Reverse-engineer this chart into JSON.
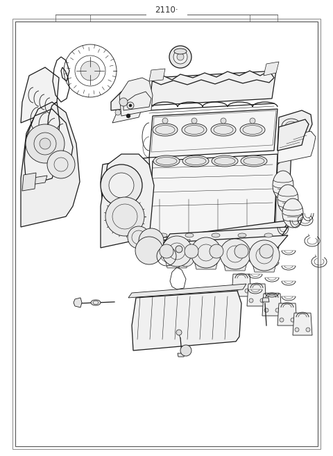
{
  "title": "2110·",
  "background_color": "#ffffff",
  "border_color": "#000000",
  "fig_width": 4.8,
  "fig_height": 6.57,
  "dpi": 100,
  "title_fontsize": 8.5,
  "border_lw": 0.8,
  "line_color": "#1a1a1a",
  "gray_fill": "#e8e8e8",
  "light_fill": "#f5f5f5"
}
